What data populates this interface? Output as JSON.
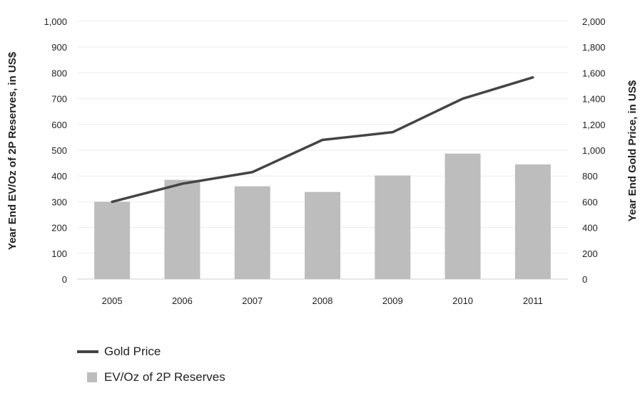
{
  "chart_data": {
    "type": "bar",
    "categories": [
      "2005",
      "2006",
      "2007",
      "2008",
      "2009",
      "2010",
      "2011"
    ],
    "series": [
      {
        "name": "EV/Oz of 2P Reserves",
        "type": "bar",
        "axis": "left",
        "color": "#bdbdbd",
        "values": [
          300,
          385,
          360,
          338,
          402,
          487,
          445
        ]
      },
      {
        "name": "Gold Price",
        "type": "line",
        "axis": "right",
        "color": "#444444",
        "values": [
          600,
          740,
          830,
          1080,
          1140,
          1400,
          1565
        ]
      }
    ],
    "ylabel": "Year End EV/Oz of 2P Reserves, in US$",
    "ylim": [
      0,
      1000
    ],
    "yticks": [
      "0",
      "100",
      "200",
      "300",
      "400",
      "500",
      "600",
      "700",
      "800",
      "900",
      "1,000"
    ],
    "y2label": "Year End Gold Price, in US$",
    "y2lim": [
      0,
      2000
    ],
    "y2ticks": [
      "0",
      "200",
      "400",
      "600",
      "800",
      "1,000",
      "1,200",
      "1,400",
      "1,600",
      "1,800",
      "2,000"
    ],
    "grid": true,
    "legend_position": "bottom-left"
  },
  "legend": {
    "line_label": "Gold Price",
    "bar_label": "EV/Oz of 2P Reserves"
  }
}
